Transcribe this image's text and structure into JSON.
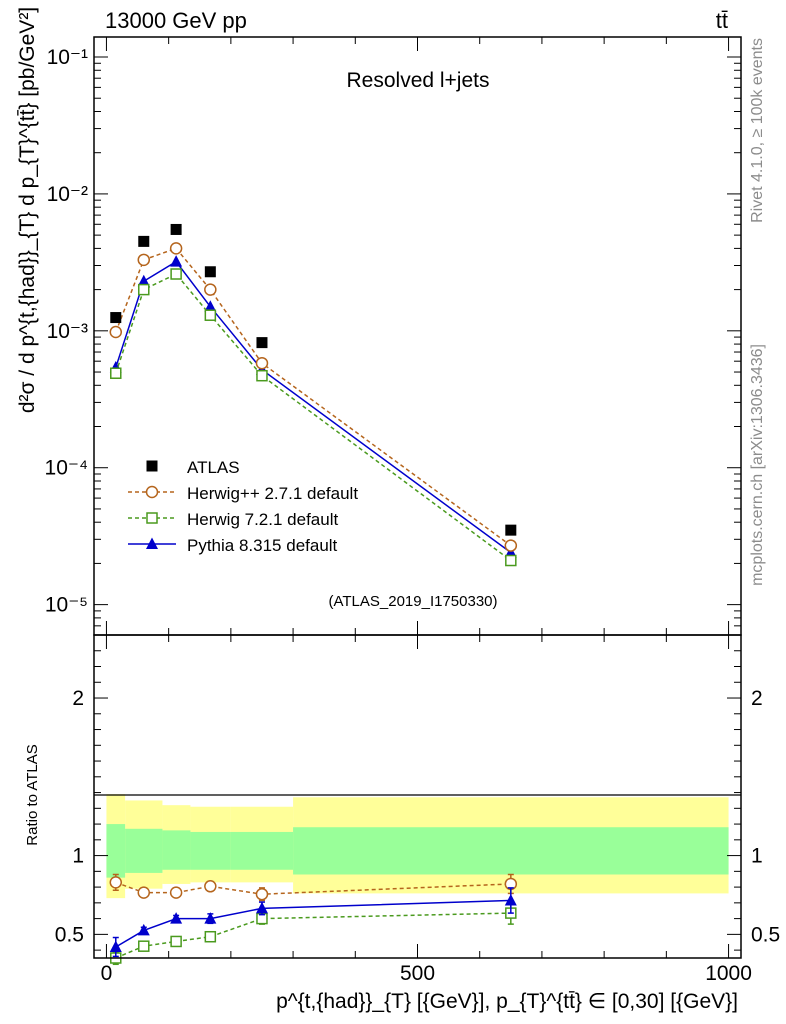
{
  "header": {
    "energy_label": "13000 GeV pp",
    "process_label": "tt̄"
  },
  "side_notes": {
    "rivet": "Rivet 4.1.0, ≥ 100k events",
    "mcplots": "mcplots.cern.ch [arXiv:1306.3436]"
  },
  "chart_data": [
    {
      "type": "scatter",
      "title": "Resolved l+jets",
      "watermark": "(ATLAS_2019_I1750330)",
      "ylabel": "d²σ / d p^{t,{had}}_{T} d p_{T}^{tt̄} [pb/GeV²]",
      "yscale": "log",
      "ylim": [
        6e-06,
        0.14
      ],
      "xlim": [
        -20,
        1020
      ],
      "y_tick_labels": [
        "10⁻⁵",
        "10⁻⁴",
        "10⁻³",
        "10⁻²",
        "10⁻¹"
      ],
      "x": [
        15,
        60,
        112,
        167,
        250,
        650
      ],
      "series": [
        {
          "name": "ATLAS",
          "color": "#000000",
          "marker": "filled-square",
          "line": "none",
          "values": [
            0.00125,
            0.0045,
            0.0055,
            0.0027,
            0.00082,
            3.5e-05
          ]
        },
        {
          "name": "Herwig++ 2.7.1 default",
          "color": "#b5651d",
          "marker": "open-circle",
          "line": "dashed",
          "values": [
            0.00098,
            0.0033,
            0.004,
            0.002,
            0.00058,
            2.7e-05
          ]
        },
        {
          "name": "Herwig 7.2.1 default",
          "color": "#4a9a1e",
          "marker": "open-square",
          "line": "dashed",
          "values": [
            0.00049,
            0.002,
            0.0026,
            0.0013,
            0.00047,
            2.1e-05
          ]
        },
        {
          "name": "Pythia 8.315 default",
          "color": "#0000cc",
          "marker": "filled-triangle",
          "line": "solid",
          "values": [
            0.00054,
            0.0023,
            0.0032,
            0.0015,
            0.00052,
            2.4e-05
          ]
        }
      ]
    },
    {
      "type": "line",
      "ylabel": "Ratio to ATLAS",
      "xlabel": "p^{t,{had}}_{T} [{GeV}], p_{T}^{tt̄} ∈ [0,30] [{GeV}]",
      "ylim": [
        0.35,
        2.4
      ],
      "xlim": [
        -20,
        1020
      ],
      "y_ticks": [
        "0.5",
        "1",
        "2"
      ],
      "x_ticks": [
        "0",
        "500",
        "1000"
      ],
      "uncertainty_bins": {
        "edges": [
          0,
          30,
          90,
          135,
          200,
          300,
          1000
        ],
        "yellow_low": [
          0.73,
          0.79,
          0.82,
          0.83,
          0.83,
          0.76
        ],
        "yellow_high": [
          1.39,
          1.35,
          1.32,
          1.31,
          1.31,
          1.37
        ],
        "green_low": [
          0.86,
          0.89,
          0.91,
          0.91,
          0.91,
          0.88
        ],
        "green_high": [
          1.2,
          1.17,
          1.16,
          1.15,
          1.15,
          1.18
        ]
      },
      "x": [
        15,
        60,
        112,
        167,
        250,
        650
      ],
      "series": [
        {
          "name": "Herwig++ 2.7.1 default",
          "color": "#b5651d",
          "marker": "open-circle",
          "line": "dashed",
          "values": [
            0.83,
            0.765,
            0.765,
            0.805,
            0.755,
            0.82
          ],
          "errors": [
            0.05,
            0.015,
            0.015,
            0.03,
            0.04,
            0.06
          ]
        },
        {
          "name": "Herwig 7.2.1 default",
          "color": "#4a9a1e",
          "marker": "open-square",
          "line": "dashed",
          "values": [
            0.35,
            0.425,
            0.455,
            0.485,
            0.6,
            0.635
          ],
          "errors": [
            0.04,
            0.015,
            0.015,
            0.025,
            0.035,
            0.07
          ]
        },
        {
          "name": "Pythia 8.315 default",
          "color": "#0000cc",
          "marker": "filled-triangle",
          "line": "solid",
          "values": [
            0.42,
            0.525,
            0.6,
            0.6,
            0.665,
            0.715
          ],
          "errors": [
            0.06,
            0.02,
            0.02,
            0.03,
            0.04,
            0.08
          ]
        }
      ]
    }
  ]
}
